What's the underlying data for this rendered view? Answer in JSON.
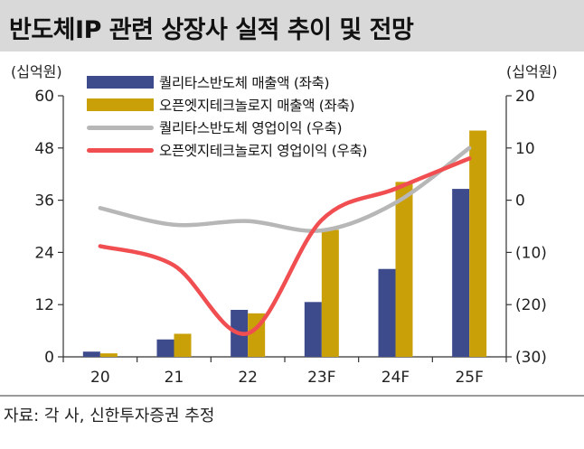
{
  "title": "반도체IP 관련 상장사 실적 추이 및 전망",
  "source": "자료: 각 사, 신한투자증권 추정",
  "chart_data": {
    "type": "bar",
    "categories": [
      "20",
      "21",
      "22",
      "23F",
      "24F",
      "25F"
    ],
    "left_axis": {
      "unit": "(십억원)",
      "ylim": [
        0,
        60
      ],
      "ticks": [
        "0",
        "12",
        "24",
        "36",
        "48",
        "60"
      ],
      "tick_values": [
        0,
        12,
        24,
        36,
        48,
        60
      ]
    },
    "right_axis": {
      "unit": "(십억원)",
      "ylim": [
        -30,
        20
      ],
      "ticks": [
        "(30)",
        "(20)",
        "(10)",
        "0",
        "10",
        "20"
      ],
      "tick_values": [
        -30,
        -20,
        -10,
        0,
        10,
        20
      ]
    },
    "series": [
      {
        "name": "퀄리타스반도체 매출액 (좌축)",
        "type": "bar",
        "axis": "left",
        "color": "#3d4a8c",
        "values": [
          1.2,
          4.0,
          10.8,
          12.6,
          20.2,
          38.6
        ]
      },
      {
        "name": "오픈엣지테크놀로지 매출액 (좌축)",
        "type": "bar",
        "axis": "left",
        "color": "#c9a008",
        "values": [
          0.8,
          5.3,
          10.0,
          29.2,
          40.2,
          52.0
        ]
      },
      {
        "name": "퀄리타스반도체 영업이익 (우축)",
        "type": "line",
        "axis": "right",
        "color": "#b7b7b7",
        "values": [
          -1.5,
          -4.7,
          -4.0,
          -5.8,
          -0.5,
          10.0
        ]
      },
      {
        "name": "오픈엣지테크놀로지 영업이익 (우축)",
        "type": "line",
        "axis": "right",
        "color": "#f04e50",
        "values": [
          -8.8,
          -12.5,
          -25.5,
          -3.8,
          2.2,
          8.0
        ]
      }
    ],
    "grid": false,
    "legend_position": "top-left"
  }
}
